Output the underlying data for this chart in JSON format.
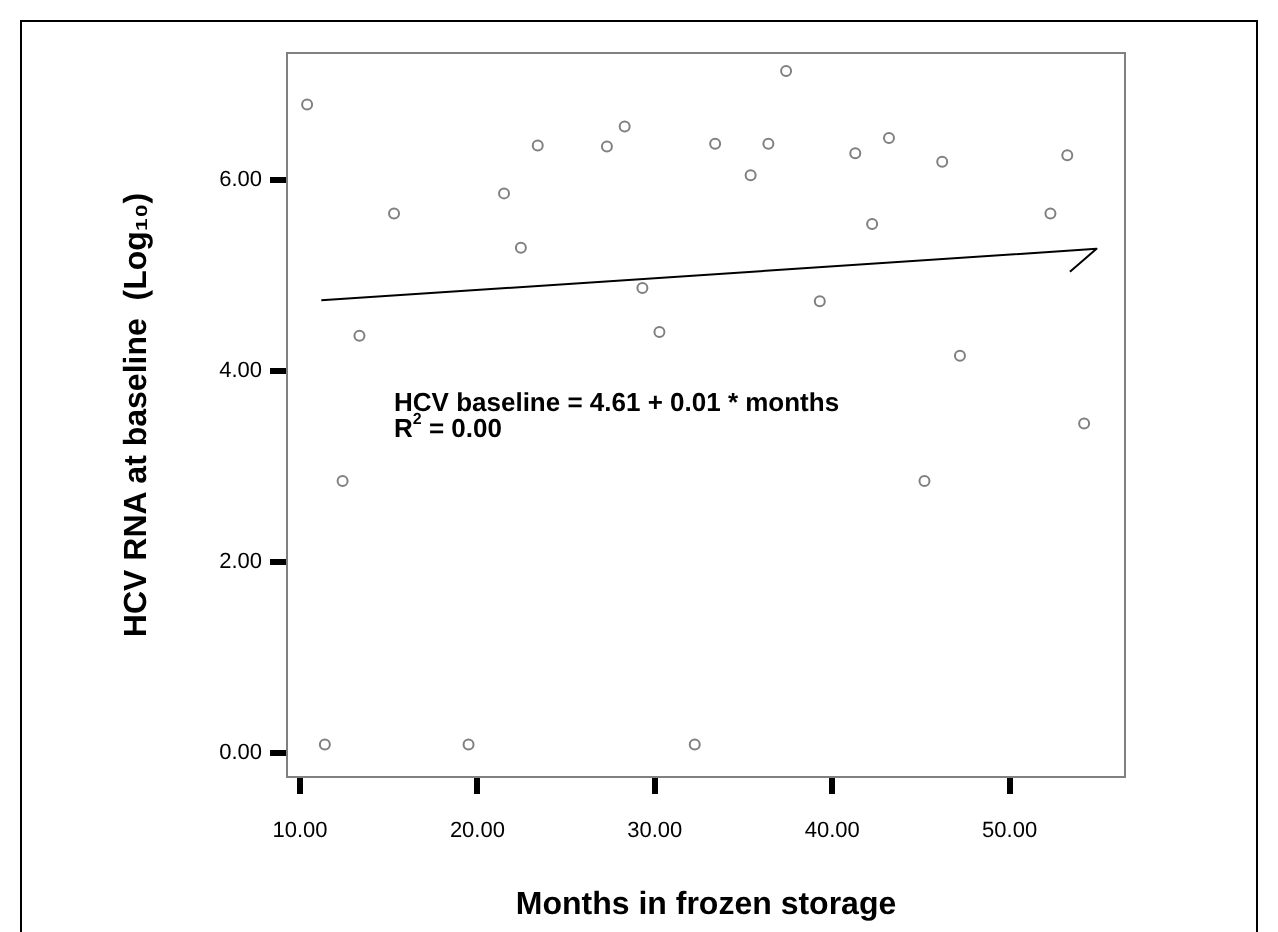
{
  "chart_data": {
    "type": "scatter",
    "xlabel": "Months in frozen storage",
    "ylabel": "HCV RNA at baseline  (Log₁₀)",
    "xlim": [
      9.21,
      56.56
    ],
    "ylim": [
      -0.26,
      7.34
    ],
    "xticks": [
      {
        "value": 10,
        "label": "10.00"
      },
      {
        "value": 20,
        "label": "20.00"
      },
      {
        "value": 30,
        "label": "30.00"
      },
      {
        "value": 40,
        "label": "40.00"
      },
      {
        "value": 50,
        "label": "50.00"
      }
    ],
    "yticks": [
      {
        "value": 0,
        "label": "0.00"
      },
      {
        "value": 2,
        "label": "2.00"
      },
      {
        "value": 4,
        "label": "4.00"
      },
      {
        "value": 6,
        "label": "6.00"
      }
    ],
    "grid": false,
    "legend": false,
    "annotations": [
      "HCV baseline = 4.61 + 0.01 * months",
      "R$^{2}$ = 0.00"
    ],
    "series": [
      {
        "marker": "circle",
        "color": "#808080",
        "x": [
          10.4,
          11.4,
          12.4,
          13.35,
          15.3,
          19.5,
          21.5,
          22.45,
          23.4,
          27.3,
          28.3,
          29.3,
          30.26,
          32.25,
          33.4,
          35.4,
          36.4,
          37.4,
          39.3,
          41.3,
          42.25,
          43.2,
          45.2,
          46.2,
          47.2,
          52.3,
          53.25,
          54.2
        ],
        "values": [
          6.79,
          0.09,
          2.85,
          4.37,
          5.65,
          0.09,
          5.86,
          5.29,
          6.36,
          6.35,
          6.56,
          4.87,
          4.41,
          0.09,
          6.38,
          6.05,
          6.38,
          7.14,
          4.73,
          6.28,
          5.54,
          6.44,
          2.85,
          6.19,
          4.16,
          5.65,
          6.26,
          3.45
        ]
      },
      {
        "type": "line",
        "marker": "none",
        "color": "#000000",
        "x": [
          11.2,
          54.9,
          53.4
        ],
        "values": [
          4.74,
          5.28,
          5.04
        ]
      }
    ]
  }
}
